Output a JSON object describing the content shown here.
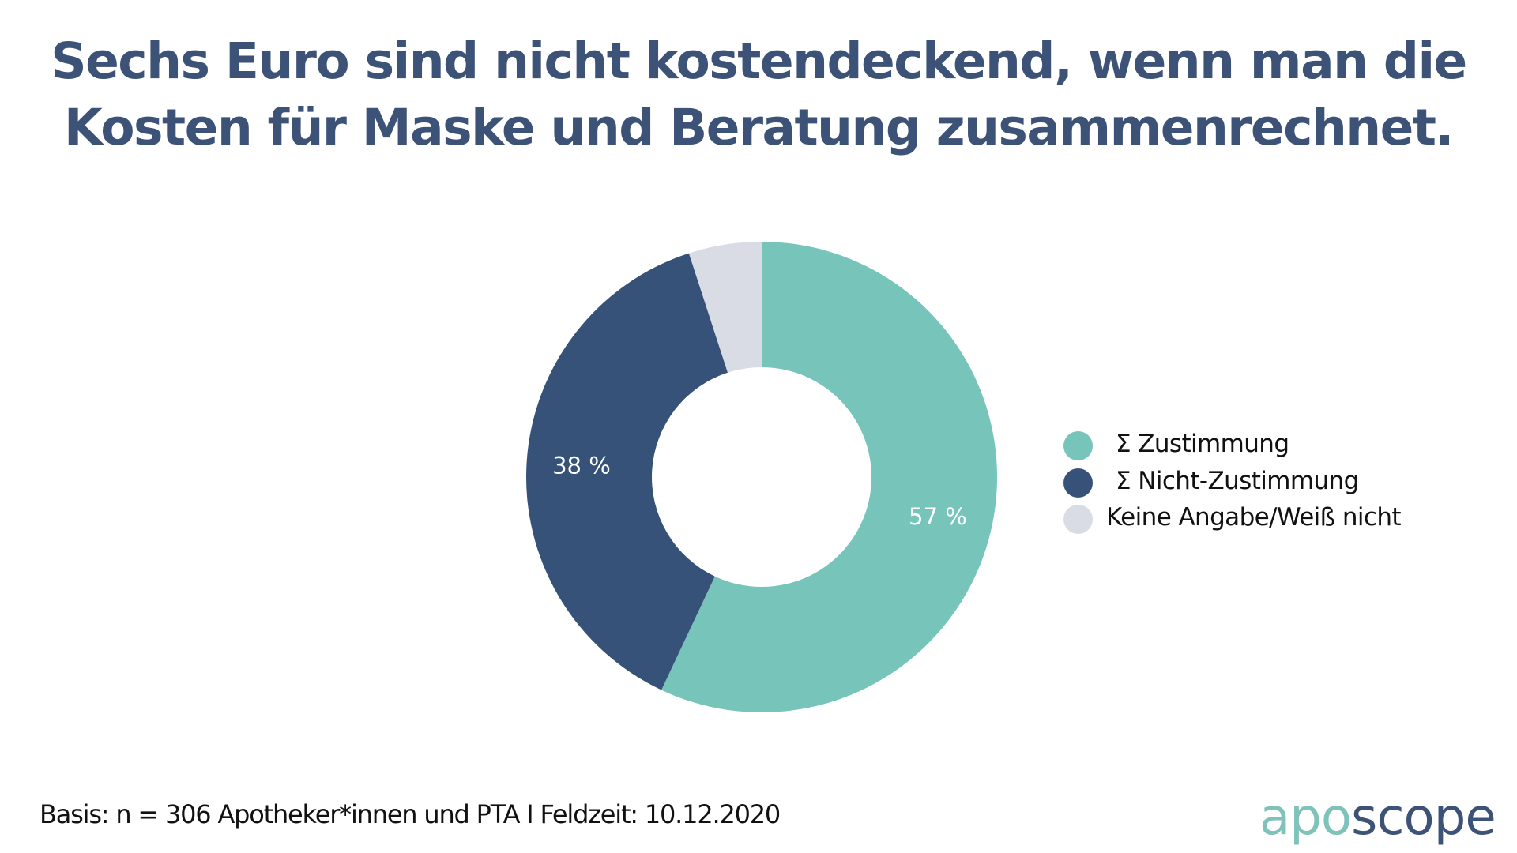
{
  "title": {
    "line1": "Sechs Euro sind nicht kostendeckend, wenn man die",
    "line2": "Kosten für Maske und Beratung zusammenrechnet."
  },
  "chart_data": {
    "type": "pie",
    "variant": "donut",
    "title": "Sechs Euro sind nicht kostendeckend, wenn man die Kosten für Maske und Beratung zusammenrechnet.",
    "categories": [
      "Σ Zustimmung",
      "Σ Nicht-Zustimmung",
      "Keine Angabe/Weiß nicht"
    ],
    "values": [
      57,
      38,
      5
    ],
    "unit": "%",
    "data_labels": [
      "57 %",
      "38 %",
      ""
    ],
    "colors": [
      "#77c4bb",
      "#375279",
      "#d9dce5"
    ],
    "legend_position": "right"
  },
  "legend": [
    {
      "label": "Σ Zustimmung",
      "color": "#77c4bb"
    },
    {
      "label": "Σ Nicht-Zustimmung",
      "color": "#375279"
    },
    {
      "label": "Keine Angabe/Weiß nicht",
      "color": "#d9dce5"
    }
  ],
  "footer": {
    "text": "Basis: n = 306 Apotheker*innen und PTA I Feldzeit: 10.12.2020"
  },
  "logo": {
    "part1": "apo",
    "part2": "scope",
    "color1": "#7fc2ba",
    "color2": "#3d5277"
  }
}
